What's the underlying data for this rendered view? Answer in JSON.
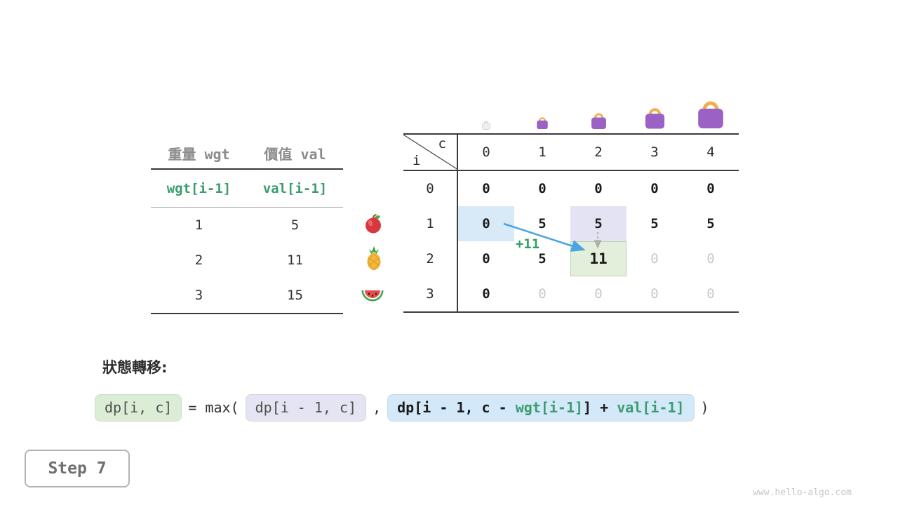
{
  "meta": {
    "watermark": "www.hello-algo.com"
  },
  "items_table": {
    "col_headers": [
      "重量 wgt",
      "價值 val"
    ],
    "formula_row": [
      "wgt[i-1]",
      "val[i-1]"
    ],
    "rows": [
      {
        "wgt": "1",
        "val": "5",
        "fruit": "apple"
      },
      {
        "wgt": "2",
        "val": "11",
        "fruit": "pineapple"
      },
      {
        "wgt": "3",
        "val": "15",
        "fruit": "watermelon"
      }
    ]
  },
  "dp_table": {
    "corner_top": "c",
    "corner_bottom": "i",
    "col_headers": [
      "0",
      "1",
      "2",
      "3",
      "4"
    ],
    "row_headers": [
      "0",
      "1",
      "2",
      "3"
    ],
    "cells": [
      [
        {
          "v": "0",
          "s": "done"
        },
        {
          "v": "0",
          "s": "done"
        },
        {
          "v": "0",
          "s": "done"
        },
        {
          "v": "0",
          "s": "done"
        },
        {
          "v": "0",
          "s": "done"
        }
      ],
      [
        {
          "v": "0",
          "s": "done hl-blue"
        },
        {
          "v": "5",
          "s": "done"
        },
        {
          "v": "5",
          "s": "done hl-purple"
        },
        {
          "v": "5",
          "s": "done"
        },
        {
          "v": "5",
          "s": "done"
        }
      ],
      [
        {
          "v": "0",
          "s": "done"
        },
        {
          "v": "5",
          "s": "done"
        },
        {
          "v": "11",
          "s": "done hl-green big"
        },
        {
          "v": "0",
          "s": "todo"
        },
        {
          "v": "0",
          "s": "todo"
        }
      ],
      [
        {
          "v": "0",
          "s": "done"
        },
        {
          "v": "0",
          "s": "todo"
        },
        {
          "v": "0",
          "s": "todo"
        },
        {
          "v": "0",
          "s": "todo"
        },
        {
          "v": "0",
          "s": "todo"
        }
      ]
    ],
    "bags": [
      {
        "capacity": 0,
        "size": 14,
        "style": "empty"
      },
      {
        "capacity": 1,
        "size": 20,
        "style": "purple"
      },
      {
        "capacity": 2,
        "size": 27,
        "style": "purple"
      },
      {
        "capacity": 3,
        "size": 35,
        "style": "purple"
      },
      {
        "capacity": 4,
        "size": 46,
        "style": "purple"
      }
    ],
    "annotation": {
      "text": "+11",
      "color": "#33a05e"
    }
  },
  "transition": {
    "label": "狀態轉移:",
    "formula": {
      "result": "dp[i, c]",
      "operator": "= max(",
      "option1": "dp[i - 1, c]",
      "separator": ",",
      "option2_parts": [
        {
          "text": "dp[i - 1, c - ",
          "color": "dark"
        },
        {
          "text": "wgt[i-1]",
          "color": "green"
        },
        {
          "text": "] + ",
          "color": "dark"
        },
        {
          "text": "val[i-1]",
          "color": "green"
        }
      ],
      "close": ")"
    }
  },
  "step": {
    "label": "Step 7"
  },
  "colors": {
    "green_text": "#3a9d6d",
    "cell_blue": "#d8e9f7",
    "cell_purple": "#e3e3f4",
    "cell_green": "#e3efdb",
    "arrow_blue": "#4aa4e2",
    "muted_value": "#c9c9c9"
  }
}
